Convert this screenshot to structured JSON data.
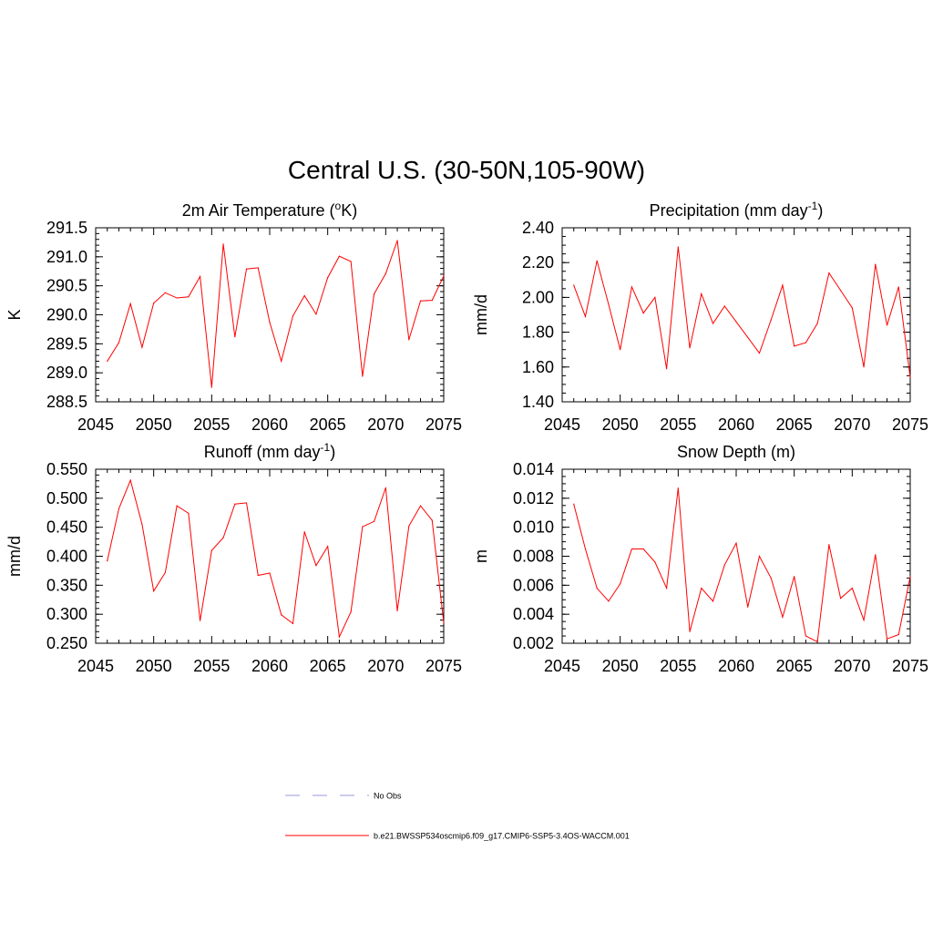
{
  "page": {
    "title": "Central U.S. (30-50N,105-90W)"
  },
  "legend": {
    "entries": [
      {
        "label": "No Obs",
        "color": "#9999dd",
        "style": "dashed"
      },
      {
        "label": "b.e21.BWSSP534oscmip6.f09_g17.CMIP6-SSP5-3.4OS-WACCM.001",
        "color": "#ff0000",
        "style": "solid"
      }
    ]
  },
  "chart_data": [
    {
      "type": "line",
      "title_main": "2m Air Temperature (",
      "title_sup": "o",
      "title_tail": "K)",
      "ylabel": "K",
      "xlabel": "",
      "xlim": [
        2045,
        2075
      ],
      "ylim": [
        288.5,
        291.5
      ],
      "x_ticks": [
        "2045",
        "2050",
        "2055",
        "2060",
        "2065",
        "2070",
        "2075"
      ],
      "y_ticks": [
        "288.5",
        "289.0",
        "289.5",
        "290.0",
        "290.5",
        "291.0",
        "291.5"
      ],
      "y_minor_step": 0.1,
      "grid": false,
      "series": [
        {
          "color": "#ff0000",
          "x": [
            2046,
            2047,
            2048,
            2049,
            2050,
            2051,
            2052,
            2053,
            2054,
            2055,
            2056,
            2057,
            2058,
            2059,
            2060,
            2061,
            2062,
            2063,
            2064,
            2065,
            2066,
            2067,
            2068,
            2069,
            2070,
            2071,
            2072,
            2073,
            2074,
            2075
          ],
          "values": [
            289.2,
            289.52,
            290.19,
            289.44,
            290.2,
            290.38,
            290.29,
            290.31,
            290.66,
            288.75,
            291.22,
            289.62,
            290.79,
            290.81,
            289.87,
            289.2,
            289.98,
            290.33,
            290.01,
            290.64,
            291.01,
            290.92,
            288.94,
            290.36,
            290.71,
            291.28,
            289.57,
            290.24,
            290.25,
            290.67
          ]
        }
      ]
    },
    {
      "type": "line",
      "title_main": "Precipitation (mm day",
      "title_sup": "-1",
      "title_tail": ")",
      "ylabel": "mm/d",
      "xlabel": "",
      "xlim": [
        2045,
        2075
      ],
      "ylim": [
        1.4,
        2.4
      ],
      "x_ticks": [
        "2045",
        "2050",
        "2055",
        "2060",
        "2065",
        "2070",
        "2075"
      ],
      "y_ticks": [
        "1.40",
        "1.60",
        "1.80",
        "2.00",
        "2.20",
        "2.40"
      ],
      "y_minor_step": 0.05,
      "grid": false,
      "series": [
        {
          "color": "#ff0000",
          "x": [
            2046,
            2047,
            2048,
            2049,
            2050,
            2051,
            2052,
            2053,
            2054,
            2055,
            2056,
            2057,
            2058,
            2059,
            2060,
            2061,
            2062,
            2063,
            2064,
            2065,
            2066,
            2067,
            2068,
            2069,
            2070,
            2071,
            2072,
            2073,
            2074,
            2075
          ],
          "values": [
            2.07,
            1.89,
            2.21,
            1.96,
            1.7,
            2.06,
            1.91,
            2.0,
            1.59,
            2.29,
            1.71,
            2.02,
            1.85,
            1.95,
            1.86,
            1.77,
            1.68,
            1.87,
            2.07,
            1.72,
            1.74,
            1.85,
            2.14,
            2.04,
            1.94,
            1.6,
            2.19,
            1.84,
            2.06,
            1.54
          ]
        }
      ]
    },
    {
      "type": "line",
      "title_main": "Runoff (mm day",
      "title_sup": "-1",
      "title_tail": ")",
      "ylabel": "mm/d",
      "xlabel": "",
      "xlim": [
        2045,
        2075
      ],
      "ylim": [
        0.25,
        0.55
      ],
      "x_ticks": [
        "2045",
        "2050",
        "2055",
        "2060",
        "2065",
        "2070",
        "2075"
      ],
      "y_ticks": [
        "0.250",
        "0.300",
        "0.350",
        "0.400",
        "0.450",
        "0.500",
        "0.550"
      ],
      "y_minor_step": 0.01,
      "grid": false,
      "series": [
        {
          "color": "#ff0000",
          "x": [
            2046,
            2047,
            2048,
            2049,
            2050,
            2051,
            2052,
            2053,
            2054,
            2055,
            2056,
            2057,
            2058,
            2059,
            2060,
            2061,
            2062,
            2063,
            2064,
            2065,
            2066,
            2067,
            2068,
            2069,
            2070,
            2071,
            2072,
            2073,
            2074,
            2075
          ],
          "values": [
            0.392,
            0.482,
            0.531,
            0.455,
            0.34,
            0.372,
            0.487,
            0.474,
            0.289,
            0.41,
            0.432,
            0.49,
            0.492,
            0.367,
            0.371,
            0.299,
            0.284,
            0.442,
            0.384,
            0.417,
            0.261,
            0.304,
            0.451,
            0.46,
            0.518,
            0.306,
            0.452,
            0.487,
            0.462,
            0.285
          ]
        }
      ]
    },
    {
      "type": "line",
      "title_main": "Snow Depth (m)",
      "title_sup": "",
      "title_tail": "",
      "ylabel": "m",
      "xlabel": "",
      "xlim": [
        2045,
        2075
      ],
      "ylim": [
        0.002,
        0.014
      ],
      "x_ticks": [
        "2045",
        "2050",
        "2055",
        "2060",
        "2065",
        "2070",
        "2075"
      ],
      "y_ticks": [
        "0.002",
        "0.004",
        "0.006",
        "0.008",
        "0.010",
        "0.012",
        "0.014"
      ],
      "y_minor_step": 0.0005,
      "grid": false,
      "series": [
        {
          "color": "#ff0000",
          "x": [
            2046,
            2047,
            2048,
            2049,
            2050,
            2051,
            2052,
            2053,
            2054,
            2055,
            2056,
            2057,
            2058,
            2059,
            2060,
            2061,
            2062,
            2063,
            2064,
            2065,
            2066,
            2067,
            2068,
            2069,
            2070,
            2071,
            2072,
            2073,
            2074,
            2075
          ],
          "values": [
            0.0116,
            0.0085,
            0.0058,
            0.0049,
            0.0061,
            0.0085,
            0.0085,
            0.0076,
            0.0058,
            0.0127,
            0.0028,
            0.0058,
            0.0049,
            0.0074,
            0.0089,
            0.0045,
            0.008,
            0.0065,
            0.0038,
            0.0066,
            0.0025,
            0.0021,
            0.0088,
            0.0051,
            0.0058,
            0.0036,
            0.0081,
            0.0023,
            0.0026,
            0.0066
          ]
        }
      ]
    }
  ]
}
